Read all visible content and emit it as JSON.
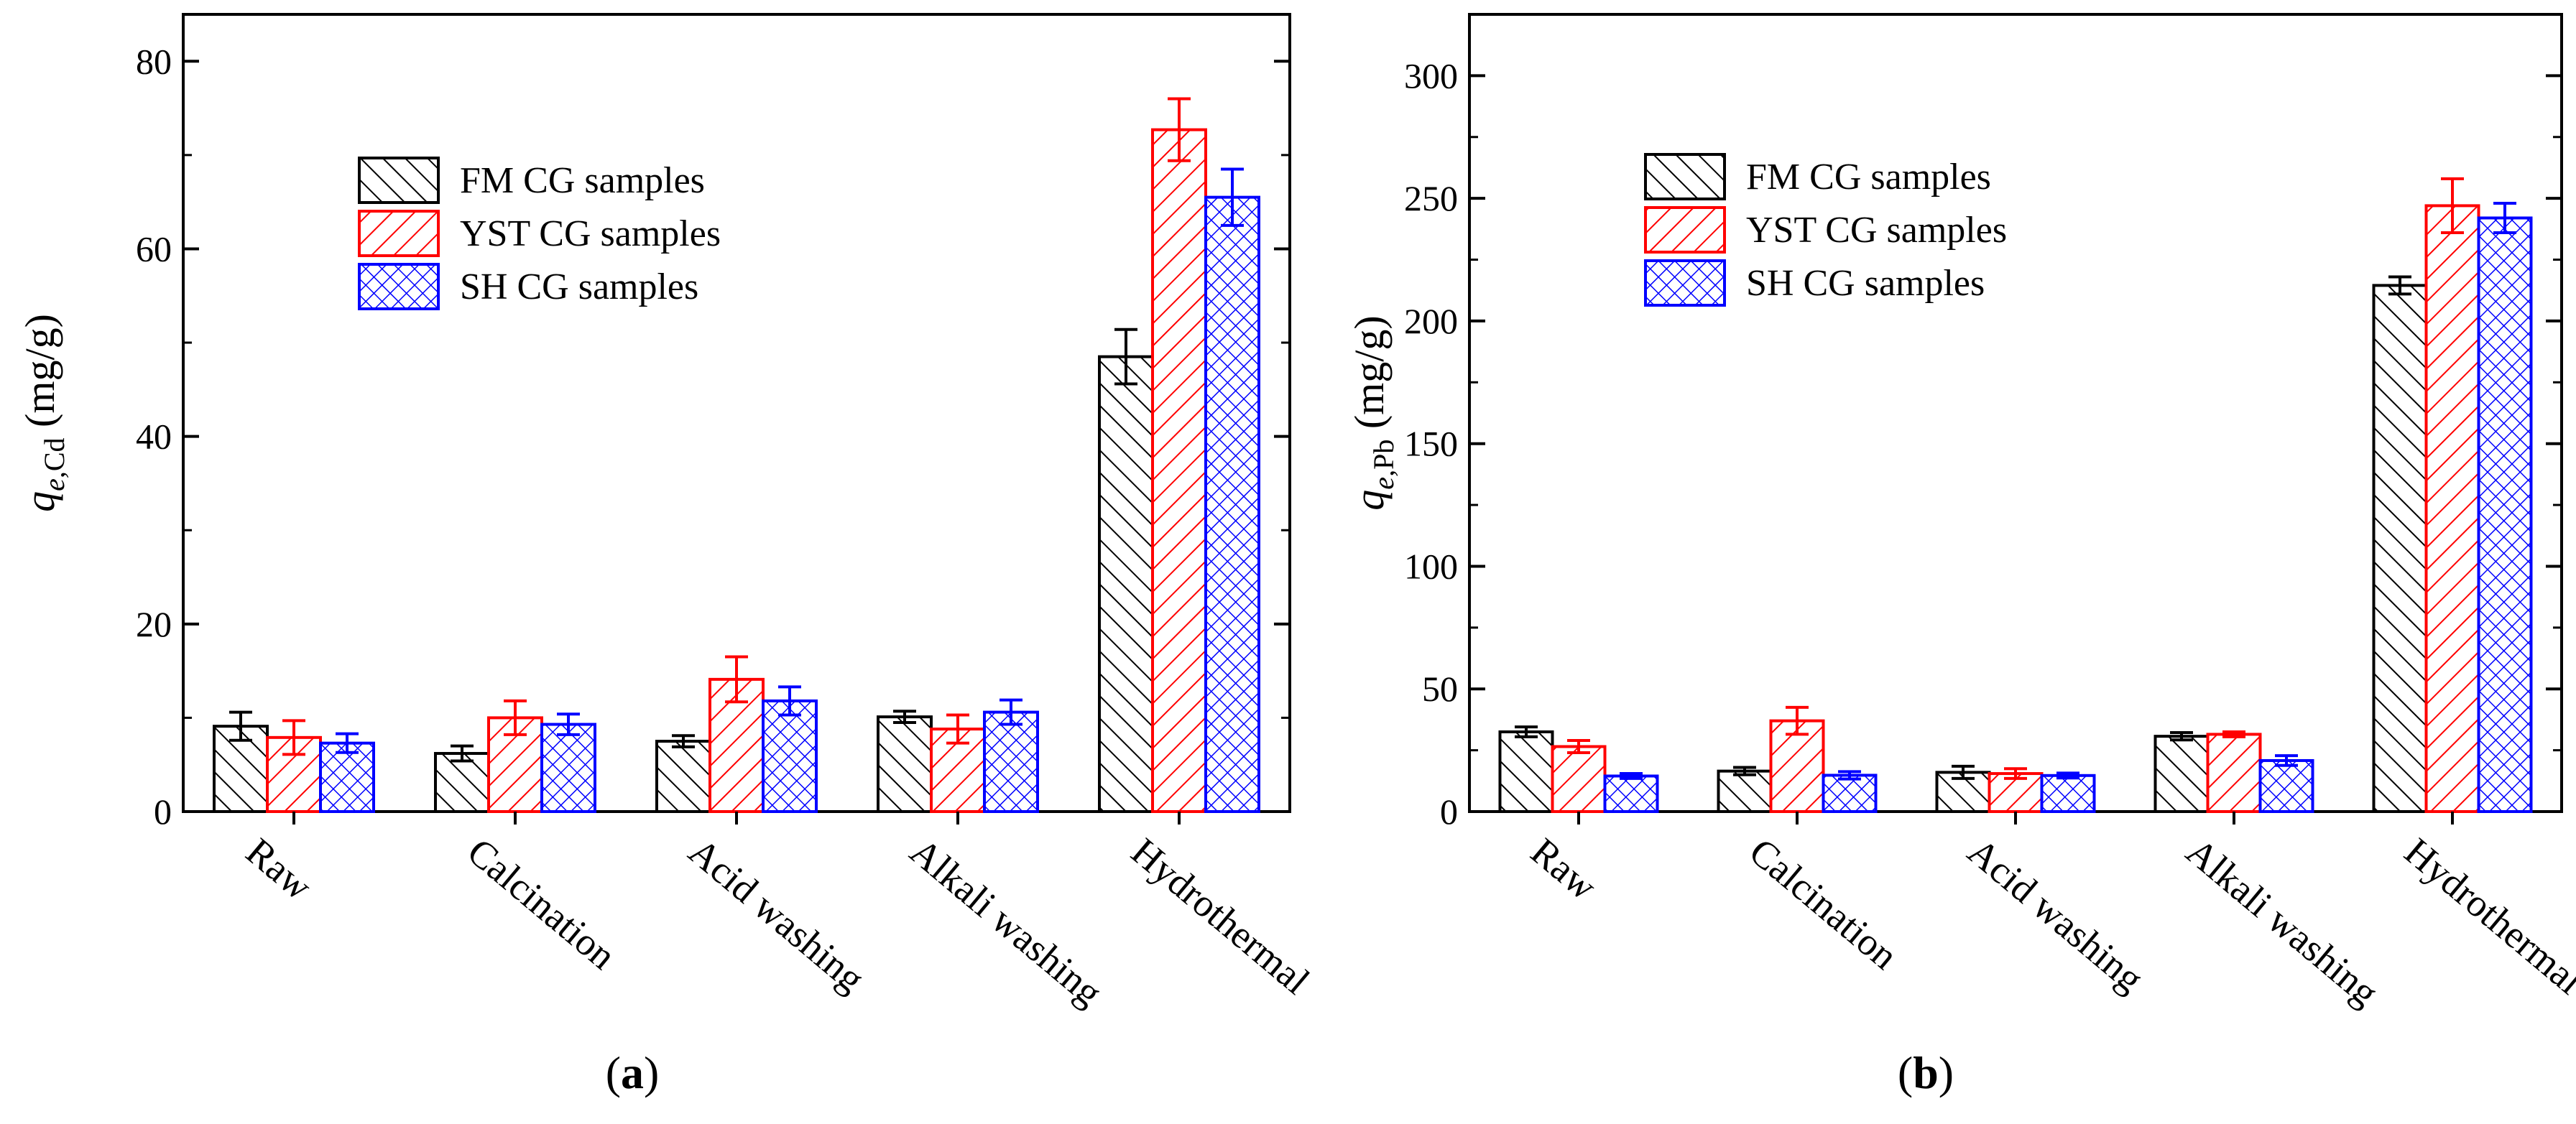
{
  "chart_data": [
    {
      "type": "bar",
      "panel": "a",
      "panel_label_prefix": "(",
      "panel_label_letter": "a",
      "panel_label_suffix": ")",
      "ylabel_var": "q",
      "ylabel_sub": "e,",
      "ylabel_subsub": "Cd",
      "ylabel_unit": " (mg/g)",
      "ylim": [
        0,
        85
      ],
      "yticks": [
        0,
        20,
        40,
        60,
        80
      ],
      "ytick_labels": [
        "0",
        "20",
        "40",
        "60",
        "80"
      ],
      "categories": [
        "Raw",
        "Calcination",
        "Acid washing",
        "Alkali washing",
        "Hydrothermal"
      ],
      "series": [
        {
          "name": "FM CG samples",
          "color": "#000000",
          "hatch": "diag-right",
          "values": [
            9.1,
            6.2,
            7.5,
            10.1,
            48.5
          ],
          "errors": [
            1.5,
            0.8,
            0.6,
            0.6,
            2.9
          ]
        },
        {
          "name": "YST CG samples",
          "color": "#ff0000",
          "hatch": "diag-left",
          "values": [
            7.9,
            10.0,
            14.1,
            8.8,
            72.7
          ],
          "errors": [
            1.8,
            1.8,
            2.4,
            1.5,
            3.3
          ]
        },
        {
          "name": "SH CG samples",
          "color": "#0000ff",
          "hatch": "cross",
          "values": [
            7.3,
            9.3,
            11.8,
            10.6,
            65.5
          ],
          "errors": [
            1.0,
            1.1,
            1.5,
            1.3,
            3.0
          ]
        }
      ],
      "legend_position": "upper-center"
    },
    {
      "type": "bar",
      "panel": "b",
      "panel_label_prefix": "(",
      "panel_label_letter": "b",
      "panel_label_suffix": ")",
      "ylabel_var": "q",
      "ylabel_sub": "e,",
      "ylabel_subsub": "Pb",
      "ylabel_unit": " (mg/g)",
      "ylim": [
        0,
        325
      ],
      "yticks": [
        0,
        50,
        100,
        150,
        200,
        250,
        300
      ],
      "ytick_labels": [
        "0",
        "50",
        "100",
        "150",
        "200",
        "250",
        "300"
      ],
      "categories": [
        "Raw",
        "Calcination",
        "Acid washing",
        "Alkali washing",
        "Hydrothermal"
      ],
      "series": [
        {
          "name": "FM CG samples",
          "color": "#000000",
          "hatch": "diag-right",
          "values": [
            32.5,
            16.5,
            16.0,
            30.7,
            214.5
          ],
          "errors": [
            2.0,
            1.5,
            2.5,
            1.5,
            3.5
          ]
        },
        {
          "name": "YST CG samples",
          "color": "#ff0000",
          "hatch": "diag-left",
          "values": [
            26.5,
            37.0,
            15.5,
            31.5,
            247.0
          ],
          "errors": [
            2.5,
            5.5,
            2.0,
            1.0,
            11.0
          ]
        },
        {
          "name": "SH CG samples",
          "color": "#0000ff",
          "hatch": "cross",
          "values": [
            14.5,
            14.8,
            14.7,
            20.8,
            242.0
          ],
          "errors": [
            1.0,
            1.5,
            1.0,
            2.0,
            6.0
          ]
        }
      ],
      "legend_position": "upper-left"
    }
  ]
}
